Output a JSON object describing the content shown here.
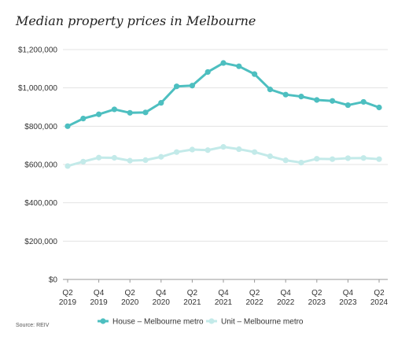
{
  "chart_data": {
    "type": "line",
    "title": "Median property prices in Melbourne",
    "source": "Source: REIV",
    "x": [
      "Q2 2019",
      "Q3 2019",
      "Q4 2019",
      "Q1 2020",
      "Q2 2020",
      "Q3 2020",
      "Q4 2020",
      "Q1 2021",
      "Q2 2021",
      "Q3 2021",
      "Q4 2021",
      "Q1 2022",
      "Q2 2022",
      "Q3 2022",
      "Q4 2022",
      "Q1 2023",
      "Q2 2023",
      "Q3 2023",
      "Q4 2023",
      "Q1 2024",
      "Q2 2024"
    ],
    "x_tick_labels": [
      {
        "index": 0,
        "line1": "Q2",
        "line2": "2019"
      },
      {
        "index": 2,
        "line1": "Q4",
        "line2": "2019"
      },
      {
        "index": 4,
        "line1": "Q2",
        "line2": "2020"
      },
      {
        "index": 6,
        "line1": "Q4",
        "line2": "2020"
      },
      {
        "index": 8,
        "line1": "Q2",
        "line2": "2021"
      },
      {
        "index": 10,
        "line1": "Q4",
        "line2": "2021"
      },
      {
        "index": 12,
        "line1": "Q2",
        "line2": "2022"
      },
      {
        "index": 14,
        "line1": "Q4",
        "line2": "2022"
      },
      {
        "index": 16,
        "line1": "Q2",
        "line2": "2023"
      },
      {
        "index": 18,
        "line1": "Q4",
        "line2": "2023"
      },
      {
        "index": 20,
        "line1": "Q2",
        "line2": "2024"
      }
    ],
    "y_ticks": [
      0,
      200000,
      400000,
      600000,
      800000,
      1000000,
      1200000
    ],
    "y_tick_labels": [
      "$0",
      "$200,000",
      "$400,000",
      "$600,000",
      "$800,000",
      "$1,000,000",
      "$1,200,000"
    ],
    "ylim": [
      0,
      1200000
    ],
    "grid": true,
    "legend_position": "bottom",
    "series": [
      {
        "name": "House – Melbourne metro",
        "color": "#4dbfc0",
        "values": [
          800000,
          840000,
          862000,
          888000,
          870000,
          872000,
          922000,
          1008000,
          1012000,
          1083000,
          1130000,
          1113000,
          1072000,
          992000,
          965000,
          955000,
          937000,
          932000,
          910000,
          927000,
          898000
        ]
      },
      {
        "name": "Unit – Melbourne metro",
        "color": "#c3eae9",
        "values": [
          592000,
          615000,
          636000,
          635000,
          620000,
          623000,
          640000,
          665000,
          678000,
          675000,
          692000,
          680000,
          665000,
          643000,
          622000,
          610000,
          630000,
          628000,
          633000,
          634000,
          628000
        ]
      }
    ]
  }
}
